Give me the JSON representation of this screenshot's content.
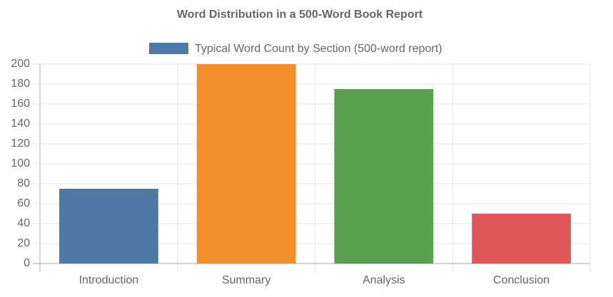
{
  "chart_data": {
    "type": "bar",
    "title": "Word Distribution in a 500-Word Book Report",
    "categories": [
      "Introduction",
      "Summary",
      "Analysis",
      "Conclusion"
    ],
    "series": [
      {
        "name": "Typical Word Count by Section (500-word report)",
        "colors": [
          "#4e79a7",
          "#f28e2b",
          "#59a14f",
          "#e15759"
        ],
        "values": [
          75,
          200,
          175,
          50
        ]
      }
    ],
    "ylim": [
      0,
      200
    ],
    "yticks": [
      0,
      20,
      40,
      60,
      80,
      100,
      120,
      140,
      160,
      180,
      200
    ],
    "grid": true
  }
}
